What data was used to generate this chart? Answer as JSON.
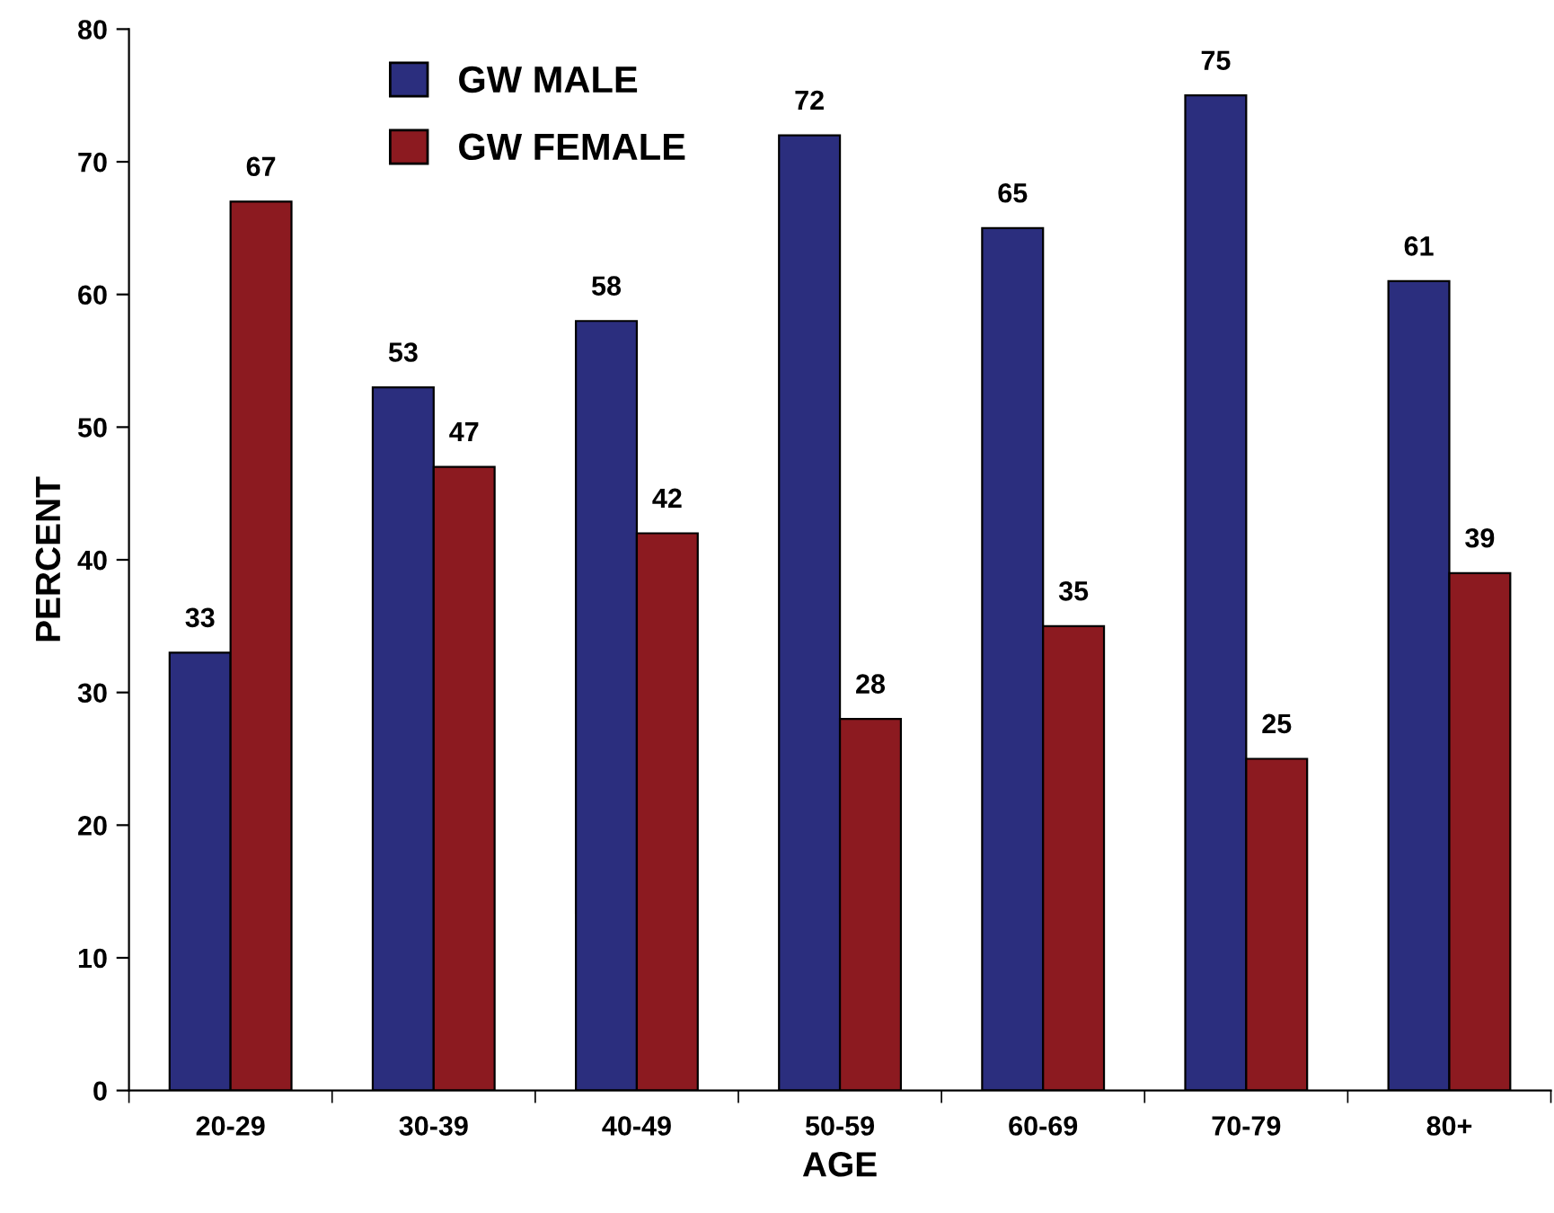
{
  "chart_data": {
    "type": "bar",
    "xlabel": "AGE",
    "ylabel": "PERCENT",
    "categories": [
      "20-29",
      "30-39",
      "40-49",
      "50-59",
      "60-69",
      "70-79",
      "80+"
    ],
    "series": [
      {
        "name": "GW MALE",
        "color": "#2b2e7e",
        "values": [
          33,
          53,
          58,
          72,
          65,
          75,
          61
        ]
      },
      {
        "name": "GW FEMALE",
        "color": "#8c1a20",
        "values": [
          67,
          47,
          42,
          28,
          35,
          25,
          39
        ]
      }
    ],
    "ylim": [
      0,
      80
    ],
    "yticks": [
      0,
      10,
      20,
      30,
      40,
      50,
      60,
      70,
      80
    ],
    "grid": false,
    "legend": "top left",
    "data_labels": true
  }
}
